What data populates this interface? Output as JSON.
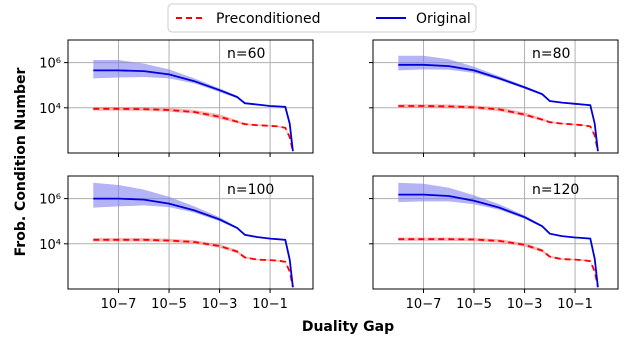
{
  "figure": {
    "xlabel": "Duality Gap",
    "ylabel": "Frob. Condition Number"
  },
  "legend": {
    "items": [
      "Preconditioned",
      "Original"
    ]
  },
  "colors": {
    "preconditioned": "#ff0000",
    "preconditioned_band": "#f08080",
    "original": "#0000dd",
    "original_band": "#8080ee"
  },
  "chart_data": [
    {
      "type": "line",
      "panel_label": "n=60",
      "xscale": "log",
      "yscale": "log",
      "xlim": [
        1e-09,
        5
      ],
      "ylim": [
        100,
        10000000.0
      ],
      "xticks": [
        {
          "value": 1e-07,
          "label": "10−7"
        },
        {
          "value": 1e-05,
          "label": "10−5"
        },
        {
          "value": 0.001,
          "label": "10−3"
        },
        {
          "value": 0.1,
          "label": "10−1"
        }
      ],
      "yticks": [
        {
          "value": 10000.0,
          "label": "10⁴"
        },
        {
          "value": 1000000.0,
          "label": "10⁶"
        }
      ],
      "grid": true,
      "x": [
        1e-08,
        1e-07,
        1e-06,
        1e-05,
        0.0001,
        0.001,
        0.005,
        0.01,
        0.03,
        0.1,
        0.2,
        0.4,
        0.6,
        0.8
      ],
      "series": [
        {
          "name": "Preconditioned",
          "style": "dashed",
          "values": [
            9000,
            9000,
            8800,
            8000,
            6500,
            4000,
            2400,
            1900,
            1700,
            1600,
            1500,
            1300,
            500,
            120
          ],
          "lower": [
            7500,
            7500,
            7300,
            6700,
            5400,
            3200,
            2100,
            1700,
            1600,
            1500,
            1400,
            1200,
            450,
            110
          ],
          "upper": [
            11000,
            11000,
            10800,
            9800,
            8000,
            5200,
            2800,
            2100,
            1850,
            1700,
            1600,
            1400,
            560,
            130
          ]
        },
        {
          "name": "Original",
          "style": "solid",
          "values": [
            450000,
            450000,
            420000,
            300000,
            150000,
            60000,
            30000,
            16000,
            14000,
            12000,
            11500,
            11000,
            2000,
            120
          ],
          "lower": [
            200000,
            220000,
            230000,
            200000,
            120000,
            50000,
            26000,
            15000,
            13500,
            11500,
            11000,
            10500,
            1900,
            110
          ],
          "upper": [
            1300000,
            1300000,
            900000,
            500000,
            200000,
            72000,
            34000,
            17000,
            14500,
            12500,
            12000,
            11500,
            2100,
            130
          ]
        }
      ]
    },
    {
      "type": "line",
      "panel_label": "n=80",
      "xscale": "log",
      "yscale": "log",
      "xlim": [
        1e-09,
        5
      ],
      "ylim": [
        100,
        10000000.0
      ],
      "xticks": [
        {
          "value": 1e-07,
          "label": "10−7"
        },
        {
          "value": 1e-05,
          "label": "10−5"
        },
        {
          "value": 0.001,
          "label": "10−3"
        },
        {
          "value": 0.1,
          "label": "10−1"
        }
      ],
      "yticks": [
        {
          "value": 10000.0,
          "label": "10⁴"
        },
        {
          "value": 1000000.0,
          "label": "10⁶"
        }
      ],
      "grid": true,
      "x": [
        1e-08,
        1e-07,
        1e-06,
        1e-05,
        0.0001,
        0.001,
        0.005,
        0.01,
        0.03,
        0.1,
        0.2,
        0.4,
        0.6,
        0.8
      ],
      "series": [
        {
          "name": "Preconditioned",
          "style": "dashed",
          "values": [
            12000,
            12000,
            11500,
            10500,
            8500,
            5000,
            3000,
            2300,
            2000,
            1800,
            1700,
            1500,
            600,
            120
          ],
          "lower": [
            10000,
            10000,
            9600,
            8800,
            7000,
            4200,
            2600,
            2100,
            1850,
            1700,
            1600,
            1400,
            550,
            110
          ],
          "upper": [
            14500,
            14500,
            14000,
            12800,
            10500,
            6200,
            3500,
            2600,
            2200,
            1950,
            1850,
            1600,
            650,
            130
          ]
        },
        {
          "name": "Original",
          "style": "solid",
          "values": [
            800000,
            800000,
            700000,
            450000,
            200000,
            80000,
            40000,
            20000,
            17000,
            15000,
            14000,
            13000,
            2000,
            120
          ],
          "lower": [
            450000,
            500000,
            480000,
            350000,
            170000,
            70000,
            36000,
            19000,
            16000,
            14000,
            13000,
            12000,
            1900,
            110
          ],
          "upper": [
            2000000,
            2000000,
            1400000,
            650000,
            250000,
            92000,
            45000,
            21000,
            18000,
            16000,
            15000,
            14000,
            2100,
            130
          ]
        }
      ]
    },
    {
      "type": "line",
      "panel_label": "n=100",
      "xscale": "log",
      "yscale": "log",
      "xlim": [
        1e-09,
        5
      ],
      "ylim": [
        100,
        10000000.0
      ],
      "xticks": [
        {
          "value": 1e-07,
          "label": "10−7"
        },
        {
          "value": 1e-05,
          "label": "10−5"
        },
        {
          "value": 0.001,
          "label": "10−3"
        },
        {
          "value": 0.1,
          "label": "10−1"
        }
      ],
      "yticks": [
        {
          "value": 10000.0,
          "label": "10⁴"
        },
        {
          "value": 1000000.0,
          "label": "10⁶"
        }
      ],
      "grid": true,
      "x": [
        1e-08,
        1e-07,
        1e-06,
        1e-05,
        0.0001,
        0.001,
        0.005,
        0.01,
        0.03,
        0.1,
        0.2,
        0.4,
        0.6,
        0.8
      ],
      "series": [
        {
          "name": "Preconditioned",
          "style": "dashed",
          "values": [
            15000,
            15000,
            15000,
            14000,
            12000,
            8000,
            4500,
            2500,
            2000,
            1900,
            1800,
            1600,
            600,
            120
          ],
          "lower": [
            12500,
            12500,
            12500,
            11800,
            10000,
            6700,
            3800,
            2200,
            1850,
            1750,
            1650,
            1450,
            550,
            110
          ],
          "upper": [
            18000,
            18000,
            18000,
            16800,
            14500,
            9600,
            5300,
            2800,
            2200,
            2050,
            1950,
            1750,
            650,
            130
          ]
        },
        {
          "name": "Original",
          "style": "solid",
          "values": [
            1000000,
            1000000,
            900000,
            600000,
            300000,
            120000,
            50000,
            25000,
            20000,
            17000,
            16000,
            15000,
            2000,
            120
          ],
          "lower": [
            400000,
            450000,
            500000,
            420000,
            240000,
            100000,
            45000,
            24000,
            19000,
            16000,
            15000,
            14000,
            1900,
            110
          ],
          "upper": [
            5000000,
            4000000,
            2500000,
            1200000,
            450000,
            150000,
            56000,
            26000,
            21000,
            18000,
            17000,
            16000,
            2100,
            130
          ]
        }
      ]
    },
    {
      "type": "line",
      "panel_label": "n=120",
      "xscale": "log",
      "yscale": "log",
      "xlim": [
        1e-09,
        5
      ],
      "ylim": [
        100,
        10000000.0
      ],
      "xticks": [
        {
          "value": 1e-07,
          "label": "10−7"
        },
        {
          "value": 1e-05,
          "label": "10−5"
        },
        {
          "value": 0.001,
          "label": "10−3"
        },
        {
          "value": 0.1,
          "label": "10−1"
        }
      ],
      "yticks": [
        {
          "value": 10000.0,
          "label": "10⁴"
        },
        {
          "value": 1000000.0,
          "label": "10⁶"
        }
      ],
      "grid": true,
      "x": [
        1e-08,
        1e-07,
        1e-06,
        1e-05,
        0.0001,
        0.001,
        0.005,
        0.01,
        0.03,
        0.1,
        0.2,
        0.4,
        0.6,
        0.8
      ],
      "series": [
        {
          "name": "Preconditioned",
          "style": "dashed",
          "values": [
            16000,
            16000,
            16000,
            15500,
            13500,
            9000,
            5000,
            2700,
            2100,
            2000,
            1900,
            1700,
            600,
            120
          ],
          "lower": [
            13500,
            13500,
            13500,
            13000,
            11300,
            7500,
            4200,
            2400,
            1900,
            1850,
            1750,
            1550,
            550,
            110
          ],
          "upper": [
            19000,
            19000,
            19000,
            18500,
            16000,
            10800,
            5900,
            3000,
            2300,
            2150,
            2050,
            1850,
            650,
            130
          ]
        },
        {
          "name": "Original",
          "style": "solid",
          "values": [
            1500000,
            1500000,
            1300000,
            800000,
            400000,
            150000,
            60000,
            28000,
            22000,
            19000,
            18000,
            17000,
            2200,
            120
          ],
          "lower": [
            700000,
            750000,
            750000,
            560000,
            320000,
            128000,
            54000,
            27000,
            21000,
            18000,
            17000,
            16000,
            2100,
            110
          ],
          "upper": [
            5000000,
            4500000,
            3000000,
            1400000,
            560000,
            180000,
            67000,
            29000,
            23000,
            20000,
            19000,
            18000,
            2300,
            130
          ]
        }
      ]
    }
  ]
}
